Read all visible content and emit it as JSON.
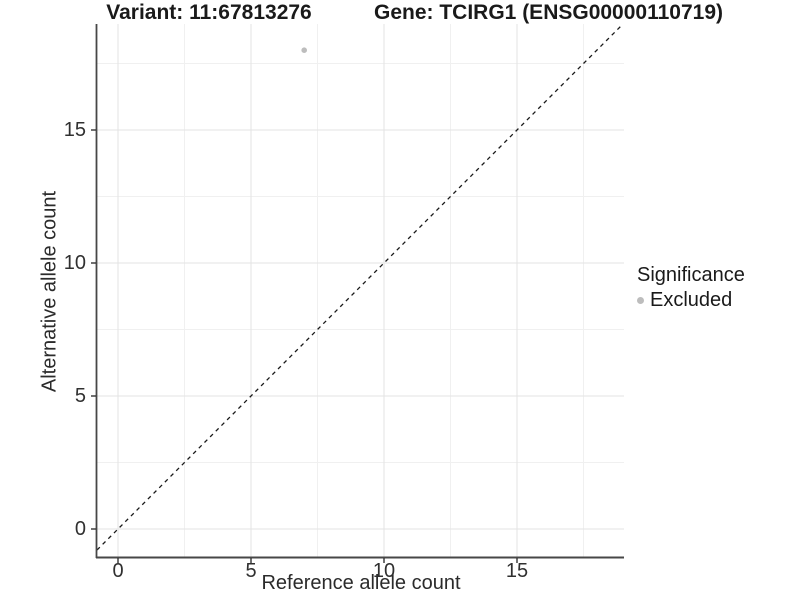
{
  "titles": {
    "left": "Variant: 11:67813276",
    "right": "Gene: TCIRG1 (ENSG00000110719)"
  },
  "chart_data": {
    "type": "scatter",
    "xlabel": "Reference allele count",
    "ylabel": "Alternative allele count",
    "xlim": [
      -0.9,
      19.0
    ],
    "ylim": [
      -1.05,
      19.0
    ],
    "x_major_ticks": [
      0,
      5,
      10,
      15
    ],
    "y_major_ticks": [
      0,
      5,
      10,
      15
    ],
    "x_minor_ticks": [
      2.5,
      7.5,
      12.5,
      17.5
    ],
    "y_minor_ticks": [
      2.5,
      7.5,
      12.5,
      17.5
    ],
    "grid": true,
    "points": [
      {
        "x": 7,
        "y": 18,
        "series": "Excluded"
      }
    ],
    "reference_line": {
      "type": "identity",
      "slope": 1,
      "intercept": 0,
      "style": "dashed"
    },
    "legend": {
      "title": "Significance",
      "position": "right",
      "items": [
        {
          "label": "Excluded",
          "color": "#bdbdbd"
        }
      ]
    },
    "colors": {
      "point": "#bdbdbd",
      "grid_major": "#e3e3e3",
      "grid_minor": "#f0f0f0",
      "axis_line": "#474747",
      "tick_mark": "#333333",
      "dashed_line": "#1a1a1a"
    }
  }
}
